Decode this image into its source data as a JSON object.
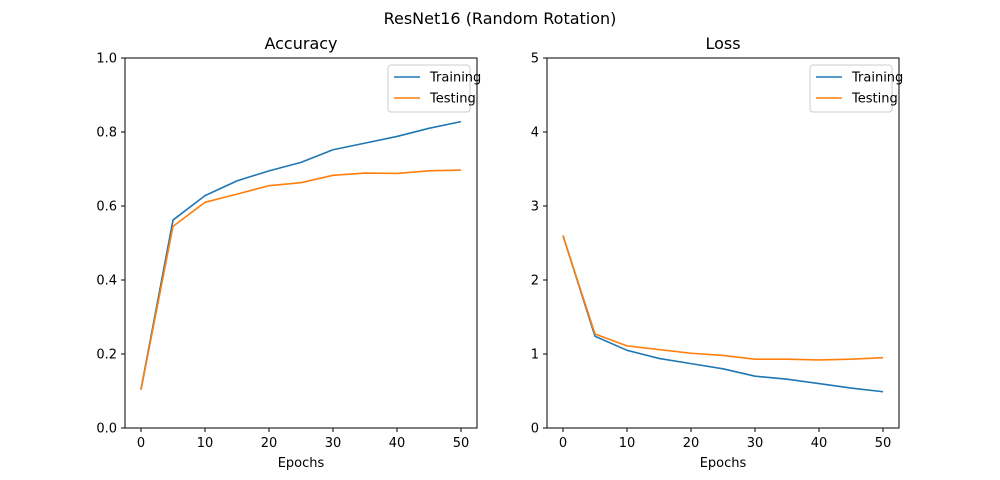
{
  "chart_data": [
    {
      "type": "line",
      "title": "Accuracy",
      "xlabel": "Epochs",
      "ylabel": "",
      "xlim": [
        -2.5,
        52.5
      ],
      "ylim": [
        0,
        1.0
      ],
      "xticks": [
        "0",
        "10",
        "20",
        "30",
        "40",
        "50"
      ],
      "yticks": [
        "0.0",
        "0.2",
        "0.4",
        "0.6",
        "0.8",
        "1.0"
      ],
      "legend_position": "top-right",
      "grid": false,
      "x": [
        0,
        5,
        10,
        15,
        20,
        25,
        30,
        35,
        40,
        45,
        50
      ],
      "series": [
        {
          "name": "Training",
          "color": "#1f77b4",
          "values": [
            0.105,
            0.562,
            0.628,
            0.668,
            0.695,
            0.718,
            0.752,
            0.77,
            0.788,
            0.81,
            0.828
          ]
        },
        {
          "name": "Testing",
          "color": "#ff7f0e",
          "values": [
            0.103,
            0.545,
            0.61,
            0.632,
            0.655,
            0.663,
            0.683,
            0.689,
            0.688,
            0.695,
            0.697
          ]
        }
      ]
    },
    {
      "type": "line",
      "title": "Loss",
      "xlabel": "Epochs",
      "ylabel": "",
      "xlim": [
        -2.5,
        52.5
      ],
      "ylim": [
        0,
        5
      ],
      "xticks": [
        "0",
        "10",
        "20",
        "30",
        "40",
        "50"
      ],
      "yticks": [
        "0",
        "1",
        "2",
        "3",
        "4",
        "5"
      ],
      "legend_position": "top-right",
      "grid": false,
      "x": [
        0,
        5,
        10,
        15,
        20,
        25,
        30,
        35,
        40,
        45,
        50
      ],
      "series": [
        {
          "name": "Training",
          "color": "#1f77b4",
          "values": [
            2.6,
            1.24,
            1.05,
            0.94,
            0.87,
            0.8,
            0.7,
            0.66,
            0.6,
            0.54,
            0.49
          ]
        },
        {
          "name": "Testing",
          "color": "#ff7f0e",
          "values": [
            2.6,
            1.27,
            1.11,
            1.06,
            1.01,
            0.98,
            0.93,
            0.93,
            0.92,
            0.93,
            0.95
          ]
        }
      ]
    }
  ],
  "figure": {
    "suptitle": "ResNet16 (Random Rotation)"
  }
}
